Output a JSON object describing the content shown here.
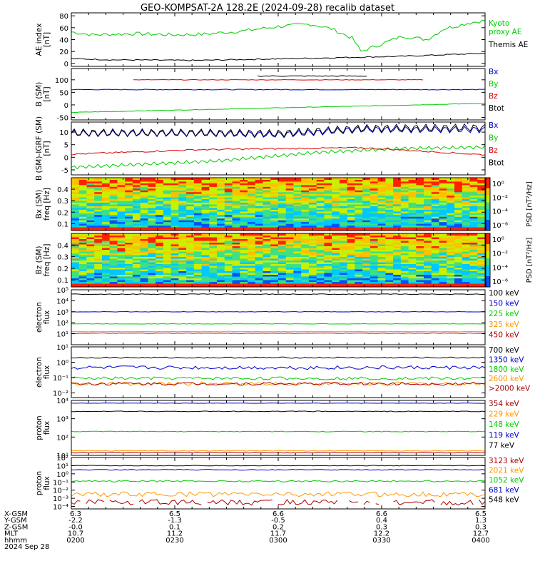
{
  "title": "GEO-KOMPSAT-2A 128.2E (2024-09-28) recalib dataset",
  "chart_data": [
    {
      "id": "ae",
      "type": "line",
      "ylabel": "AE index\n[nT]",
      "ylim": [
        -5,
        85
      ],
      "yticks": [
        "0",
        "20",
        "40",
        "60",
        "80"
      ],
      "ytick_values": [
        0,
        20,
        40,
        60,
        80
      ],
      "series": [
        {
          "name": "Kyoto\nproxy AE",
          "color": "#00cc00",
          "trend": [
            [
              0,
              53
            ],
            [
              0.05,
              48
            ],
            [
              0.15,
              50
            ],
            [
              0.25,
              48
            ],
            [
              0.32,
              49
            ],
            [
              0.42,
              55
            ],
            [
              0.5,
              62
            ],
            [
              0.58,
              66
            ],
            [
              0.63,
              58
            ],
            [
              0.68,
              42
            ],
            [
              0.7,
              20
            ],
            [
              0.74,
              30
            ],
            [
              0.8,
              46
            ],
            [
              0.86,
              40
            ],
            [
              0.9,
              58
            ],
            [
              0.96,
              68
            ],
            [
              1,
              72
            ]
          ],
          "amp": 3
        },
        {
          "name": "Themis AE",
          "color": "#000000",
          "trend": [
            [
              0,
              8
            ],
            [
              0.1,
              6
            ],
            [
              0.3,
              5
            ],
            [
              0.45,
              7
            ],
            [
              0.6,
              9
            ],
            [
              0.8,
              12
            ],
            [
              1,
              17
            ]
          ],
          "amp": 1
        }
      ]
    },
    {
      "id": "bsm",
      "type": "line",
      "ylabel": "B (SM)\n[nT]",
      "ylim": [
        -60,
        145
      ],
      "yticks": [
        "-50",
        "0",
        "50",
        "100"
      ],
      "ytick_values": [
        -50,
        0,
        50,
        100
      ],
      "series": [
        {
          "name": "Bx",
          "color": "#0000cc",
          "trend": [
            [
              0,
              61
            ],
            [
              1,
              61
            ]
          ],
          "amp": 1.5
        },
        {
          "name": "By",
          "color": "#00cc00",
          "trend": [
            [
              0,
              -30
            ],
            [
              0.5,
              -12
            ],
            [
              1,
              6
            ]
          ],
          "amp": 1
        },
        {
          "name": "Bz",
          "color": "#dd0000",
          "trend": [
            [
              0.15,
              100
            ],
            [
              0.85,
              100
            ]
          ],
          "amp": 1
        },
        {
          "name": "Btot",
          "color": "#000000",
          "trend": [
            [
              0.45,
              115
            ],
            [
              0.72,
              115
            ]
          ],
          "amp": 2
        }
      ]
    },
    {
      "id": "bsmigrf",
      "type": "line",
      "ylabel": "B (SM)-IGRF (SM)\n[nT]",
      "ylim": [
        -7,
        14
      ],
      "yticks": [
        "-5",
        "0",
        "5",
        "10"
      ],
      "ytick_values": [
        -5,
        0,
        5,
        10
      ],
      "series": [
        {
          "name": "Bx",
          "color": "#0000cc",
          "trend": [
            [
              0,
              9.5
            ],
            [
              0.3,
              9.5
            ],
            [
              0.5,
              9
            ],
            [
              0.7,
              11
            ],
            [
              1,
              11
            ]
          ],
          "amp": 1.3
        },
        {
          "name": "By",
          "color": "#00cc00",
          "trend": [
            [
              0,
              -4
            ],
            [
              0.35,
              -1.5
            ],
            [
              0.6,
              2
            ],
            [
              0.8,
              3.5
            ],
            [
              1,
              4
            ]
          ],
          "amp": 0.7
        },
        {
          "name": "Bz",
          "color": "#dd0000",
          "trend": [
            [
              0,
              1.2
            ],
            [
              0.3,
              3
            ],
            [
              0.7,
              3.8
            ],
            [
              1,
              1
            ]
          ],
          "amp": 0.3
        },
        {
          "name": "Btot",
          "color": "#000000",
          "trend": [
            [
              0,
              9.8
            ],
            [
              0.3,
              9.8
            ],
            [
              0.5,
              9.5
            ],
            [
              0.7,
              11.5
            ],
            [
              1,
              11.8
            ]
          ],
          "amp": 1.5
        }
      ]
    },
    {
      "id": "bxspec",
      "type": "heatmap",
      "ylabel": "Bx (SM)\nfreq [Hz]",
      "ylim": [
        0.04,
        0.5
      ],
      "yticks": [
        "0.1",
        "0.2",
        "0.3",
        "0.4"
      ],
      "ytick_values": [
        0.1,
        0.2,
        0.3,
        0.4
      ],
      "cbar_ticks": [
        "10⁰",
        "10⁻²",
        "10⁻⁴",
        "10⁻⁶"
      ],
      "cbar_label": "PSD [nT²/Hz]"
    },
    {
      "id": "bzspec",
      "type": "heatmap",
      "ylabel": "Bz (SM)\nfreq [Hz]",
      "ylim": [
        0.04,
        0.5
      ],
      "yticks": [
        "0.1",
        "0.2",
        "0.3",
        "0.4"
      ],
      "ytick_values": [
        0.1,
        0.2,
        0.3,
        0.4
      ],
      "cbar_ticks": [
        "10⁰",
        "10⁻²",
        "10⁻⁴",
        "10⁻⁶"
      ],
      "cbar_label": "PSD [nT²/Hz]"
    },
    {
      "id": "eflux1",
      "type": "line",
      "log": true,
      "ylabel": "electron\nflux",
      "ylim": [
        1,
        100000
      ],
      "yticks": [
        "10¹",
        "10²",
        "10³",
        "10⁴",
        "10⁵"
      ],
      "ytick_values": [
        1,
        2,
        3,
        4,
        5
      ],
      "series": [
        {
          "name": "100 keV",
          "color": "#000000",
          "trend": [
            [
              0,
              4.6
            ],
            [
              1,
              4.6
            ]
          ],
          "amp": 0.03
        },
        {
          "name": "150 keV",
          "color": "#0000cc",
          "trend": [
            [
              0,
              3
            ],
            [
              1,
              3
            ]
          ],
          "amp": 0.02
        },
        {
          "name": "225 keV",
          "color": "#00cc00",
          "trend": [
            [
              0,
              1.9
            ],
            [
              1,
              1.9
            ]
          ],
          "amp": 0.02
        },
        {
          "name": "325 keV",
          "color": "#ff9900",
          "trend": [
            [
              0,
              1.2
            ],
            [
              1,
              1.2
            ]
          ],
          "amp": 0.02
        },
        {
          "name": "450 keV",
          "color": "#aa0000",
          "trend": [
            [
              0,
              1.05
            ],
            [
              1,
              1.05
            ]
          ],
          "amp": 0.02
        }
      ]
    },
    {
      "id": "eflux2",
      "type": "line",
      "log": true,
      "ylabel": "electron\nflux",
      "ylim": [
        0.005,
        10
      ],
      "yticks": [
        "10⁻²",
        "10⁻¹",
        "10⁰",
        "10¹"
      ],
      "ytick_values": [
        -2,
        -1,
        0,
        1
      ],
      "series": [
        {
          "name": "700 keV",
          "color": "#000000",
          "trend": [
            [
              0,
              0.3
            ],
            [
              1,
              0.3
            ]
          ],
          "amp": 0.04
        },
        {
          "name": "1350 keV",
          "color": "#0000cc",
          "trend": [
            [
              0,
              -0.35
            ],
            [
              1,
              -0.35
            ]
          ],
          "amp": 0.12
        },
        {
          "name": "1800 keV",
          "color": "#00cc00",
          "trend": [
            [
              0,
              -1.05
            ],
            [
              1,
              -1.05
            ]
          ],
          "amp": 0.1
        },
        {
          "name": "2600 keV",
          "color": "#ff9900",
          "trend": [
            [
              0,
              -1.4
            ],
            [
              1,
              -1.4
            ]
          ],
          "amp": 0.12
        },
        {
          "name": ">2000 keV",
          "color": "#aa0000",
          "trend": [
            [
              0,
              -1.4
            ],
            [
              1,
              -1.4
            ]
          ],
          "amp": 0.1
        }
      ]
    },
    {
      "id": "pflux1",
      "type": "line",
      "log": true,
      "ylabel": "proton\nflux",
      "ylim": [
        10,
        10000
      ],
      "yticks": [
        "10¹",
        "10²",
        "10³",
        "10⁴"
      ],
      "ytick_values": [
        1,
        2,
        3,
        4
      ],
      "series": [
        {
          "name": "354 keV",
          "color": "#aa0000",
          "trend": [
            [
              0,
              1.15
            ],
            [
              1,
              1.15
            ]
          ],
          "amp": 0.02
        },
        {
          "name": "229 keV",
          "color": "#ff9900",
          "trend": [
            [
              0,
              1.25
            ],
            [
              1,
              1.25
            ]
          ],
          "amp": 0.02
        },
        {
          "name": "148 keV",
          "color": "#00cc00",
          "trend": [
            [
              0,
              2.3
            ],
            [
              1,
              2.3
            ]
          ],
          "amp": 0.02
        },
        {
          "name": "119 keV",
          "color": "#0000cc",
          "trend": [
            [
              0,
              3.85
            ],
            [
              1,
              3.85
            ]
          ],
          "amp": 0.01
        },
        {
          "name": "77 keV",
          "color": "#000000",
          "trend": [
            [
              0,
              3.4
            ],
            [
              1,
              3.4
            ]
          ],
          "amp": 0.02
        }
      ]
    },
    {
      "id": "pflux2",
      "type": "line",
      "log": true,
      "ylabel": "proton\nflux",
      "ylim": [
        5e-05,
        100
      ],
      "yticks": [
        "10⁻⁴",
        "10⁻³",
        "10⁻²",
        "10⁻¹",
        "10⁰",
        "10¹",
        "10²"
      ],
      "ytick_values": [
        -4,
        -3,
        -2,
        -1,
        0,
        1,
        2
      ],
      "series": [
        {
          "name": "3123 keV",
          "color": "#aa0000",
          "trend": [
            [
              0,
              -3.5
            ],
            [
              1,
              -3.5
            ]
          ],
          "amp": 0.35,
          "gaps": true
        },
        {
          "name": "2021 keV",
          "color": "#ff9900",
          "trend": [
            [
              0,
              -2.5
            ],
            [
              1,
              -2.5
            ]
          ],
          "amp": 0.3
        },
        {
          "name": "1052 keV",
          "color": "#00cc00",
          "trend": [
            [
              0,
              -0.9
            ],
            [
              1,
              -0.9
            ]
          ],
          "amp": 0.1
        },
        {
          "name": "681 keV",
          "color": "#0000cc",
          "trend": [
            [
              0,
              0.5
            ],
            [
              1,
              0.5
            ]
          ],
          "amp": 0.05
        },
        {
          "name": "548 keV",
          "color": "#000000",
          "trend": [
            [
              0,
              1
            ],
            [
              1,
              1
            ]
          ],
          "amp": 0.04
        }
      ]
    }
  ],
  "xaxis": {
    "rows": [
      {
        "label": "X-GSM",
        "values": [
          "6.3",
          "6.5",
          "6.6",
          "6.6",
          "6.5"
        ]
      },
      {
        "label": "Y-GSM",
        "values": [
          "-2.2",
          "-1.3",
          "-0.5",
          "0.4",
          "1.3"
        ]
      },
      {
        "label": "Z-GSM",
        "values": [
          "-0.0",
          "0.1",
          "0.2",
          "0.3",
          "0.3"
        ]
      },
      {
        "label": "MLT",
        "values": [
          "10.7",
          "11.2",
          "11.7",
          "12.2",
          "12.7"
        ]
      },
      {
        "label": "hhmm",
        "values": [
          "0200",
          "0230",
          "0300",
          "0330",
          "0400"
        ]
      }
    ],
    "date": "2024 Sep 28"
  }
}
